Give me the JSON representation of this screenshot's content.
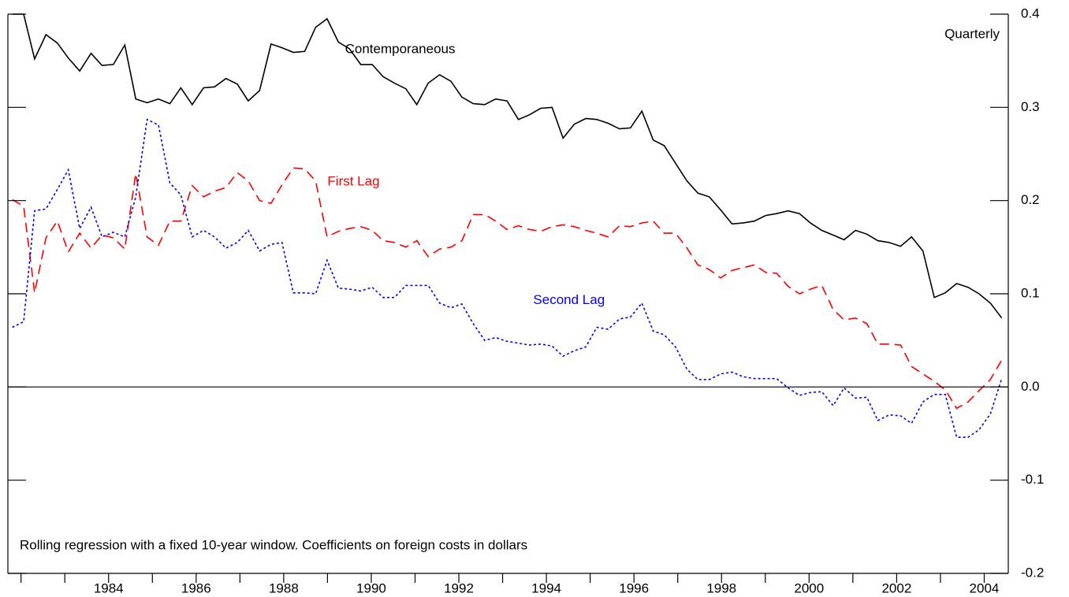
{
  "chart_data": {
    "type": "line",
    "annotation": "Quarterly",
    "note": "Rolling regression with a fixed 10-year window.  Coefficients on foreign costs in dollars",
    "x": [
      1981.8,
      1982.06,
      1982.31,
      1982.57,
      1982.83,
      1983.08,
      1983.34,
      1983.6,
      1983.85,
      1984.11,
      1984.37,
      1984.62,
      1984.88,
      1985.14,
      1985.4,
      1985.65,
      1985.91,
      1986.17,
      1986.42,
      1986.68,
      1986.94,
      1987.19,
      1987.45,
      1987.71,
      1987.96,
      1988.22,
      1988.48,
      1988.73,
      1988.99,
      1989.25,
      1989.5,
      1989.76,
      1990.02,
      1990.27,
      1990.53,
      1990.79,
      1991.04,
      1991.3,
      1991.56,
      1991.82,
      1992.07,
      1992.33,
      1992.59,
      1992.84,
      1993.1,
      1993.36,
      1993.61,
      1993.87,
      1994.13,
      1994.38,
      1994.64,
      1994.9,
      1995.15,
      1995.41,
      1995.67,
      1995.92,
      1996.18,
      1996.44,
      1996.69,
      1996.95,
      1997.21,
      1997.46,
      1997.72,
      1997.98,
      1998.24,
      1998.49,
      1998.75,
      1999.01,
      1999.26,
      1999.52,
      1999.78,
      2000.03,
      2000.29,
      2000.55,
      2000.8,
      2001.06,
      2001.32,
      2001.57,
      2001.83,
      2002.09,
      2002.34,
      2002.6,
      2002.86,
      2003.11,
      2003.37,
      2003.63,
      2003.88,
      2004.14,
      2004.4
    ],
    "series": [
      {
        "name": "Contemporaneous",
        "color": "#000000",
        "dash": "solid",
        "values": [
          0.4,
          0.4,
          0.352,
          0.378,
          0.369,
          0.353,
          0.339,
          0.358,
          0.345,
          0.346,
          0.367,
          0.309,
          0.305,
          0.309,
          0.304,
          0.321,
          0.303,
          0.321,
          0.322,
          0.331,
          0.325,
          0.307,
          0.318,
          0.368,
          0.364,
          0.359,
          0.36,
          0.386,
          0.395,
          0.37,
          0.363,
          0.346,
          0.346,
          0.333,
          0.326,
          0.32,
          0.303,
          0.326,
          0.335,
          0.328,
          0.311,
          0.304,
          0.303,
          0.309,
          0.307,
          0.287,
          0.292,
          0.299,
          0.3,
          0.267,
          0.282,
          0.288,
          0.287,
          0.283,
          0.277,
          0.278,
          0.296,
          0.265,
          0.259,
          0.24,
          0.221,
          0.208,
          0.204,
          0.19,
          0.175,
          0.176,
          0.178,
          0.184,
          0.186,
          0.189,
          0.186,
          0.176,
          0.168,
          0.163,
          0.158,
          0.168,
          0.164,
          0.157,
          0.155,
          0.151,
          0.161,
          0.146,
          0.096,
          0.101,
          0.111,
          0.107,
          0.1,
          0.09,
          0.074
        ]
      },
      {
        "name": "First Lag",
        "color": "#ff0000",
        "dash": "dashed",
        "values": [
          0.201,
          0.194,
          0.101,
          0.16,
          0.178,
          0.145,
          0.165,
          0.149,
          0.163,
          0.16,
          0.148,
          0.229,
          0.161,
          0.152,
          0.178,
          0.178,
          0.216,
          0.204,
          0.21,
          0.214,
          0.23,
          0.221,
          0.2,
          0.197,
          0.217,
          0.235,
          0.234,
          0.221,
          0.161,
          0.167,
          0.17,
          0.172,
          0.168,
          0.157,
          0.155,
          0.15,
          0.157,
          0.14,
          0.148,
          0.15,
          0.157,
          0.185,
          0.185,
          0.178,
          0.169,
          0.173,
          0.169,
          0.167,
          0.172,
          0.174,
          0.172,
          0.168,
          0.165,
          0.161,
          0.173,
          0.172,
          0.176,
          0.178,
          0.165,
          0.165,
          0.149,
          0.131,
          0.126,
          0.117,
          0.125,
          0.128,
          0.131,
          0.123,
          0.122,
          0.108,
          0.1,
          0.105,
          0.109,
          0.083,
          0.072,
          0.074,
          0.068,
          0.046,
          0.046,
          0.045,
          0.022,
          0.014,
          0.006,
          -0.003,
          -0.023,
          -0.016,
          -0.004,
          0.008,
          0.029
        ]
      },
      {
        "name": "Second Lag",
        "color": "#0000ff",
        "dash": "dotted",
        "values": [
          0.064,
          0.07,
          0.189,
          0.191,
          0.212,
          0.233,
          0.17,
          0.193,
          0.161,
          0.166,
          0.161,
          0.204,
          0.287,
          0.281,
          0.219,
          0.206,
          0.161,
          0.168,
          0.161,
          0.149,
          0.155,
          0.168,
          0.146,
          0.153,
          0.155,
          0.101,
          0.101,
          0.1,
          0.136,
          0.106,
          0.105,
          0.103,
          0.107,
          0.096,
          0.096,
          0.109,
          0.109,
          0.109,
          0.09,
          0.085,
          0.089,
          0.068,
          0.05,
          0.053,
          0.049,
          0.047,
          0.045,
          0.046,
          0.044,
          0.033,
          0.039,
          0.043,
          0.064,
          0.062,
          0.073,
          0.075,
          0.09,
          0.06,
          0.056,
          0.043,
          0.019,
          0.008,
          0.008,
          0.014,
          0.016,
          0.011,
          0.009,
          0.009,
          0.009,
          -0.001,
          -0.009,
          -0.006,
          -0.005,
          -0.02,
          -0.001,
          -0.012,
          -0.011,
          -0.036,
          -0.03,
          -0.031,
          -0.039,
          -0.016,
          -0.008,
          -0.008,
          -0.054,
          -0.054,
          -0.046,
          -0.029,
          0.009
        ]
      }
    ],
    "xlim": [
      1981.7,
      2004.55
    ],
    "xticks": [
      1984,
      1986,
      1988,
      1990,
      1992,
      1994,
      1996,
      1998,
      2000,
      2002,
      2004
    ],
    "xminorticks": [
      1982,
      1983,
      1985,
      1987,
      1989,
      1991,
      1993,
      1995,
      1997,
      1999,
      2001,
      2003
    ],
    "ylim": [
      -0.2,
      0.4
    ],
    "yticks": [
      -0.2,
      -0.1,
      {
        "value": 0,
        "label": "0.0"
      },
      0.1,
      0.2,
      0.3,
      0.4
    ],
    "zero_line": true,
    "label_positions": [
      [
        1989.4,
        0.362
      ],
      [
        1989.0,
        0.22
      ],
      [
        1993.7,
        0.093
      ]
    ]
  }
}
